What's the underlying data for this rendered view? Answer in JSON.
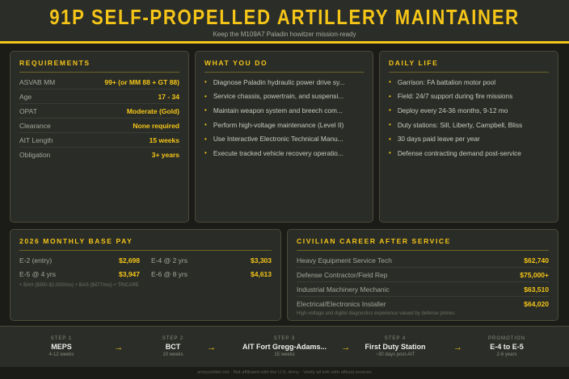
{
  "header": {
    "title": "91P SELF-PROPELLED ARTILLERY MAINTAINER",
    "subtitle": "Keep the M109A7 Paladin howitzer mission-ready"
  },
  "requirements": {
    "title": "REQUIREMENTS",
    "rows": [
      {
        "k": "ASVAB MM",
        "v": "99+ (or MM 88 + GT 88)"
      },
      {
        "k": "Age",
        "v": "17 - 34"
      },
      {
        "k": "OPAT",
        "v": "Moderate (Gold)"
      },
      {
        "k": "Clearance",
        "v": "None required"
      },
      {
        "k": "AIT Length",
        "v": "15 weeks"
      },
      {
        "k": "Obligation",
        "v": "3+ years"
      }
    ]
  },
  "what_you_do": {
    "title": "WHAT YOU DO",
    "items": [
      "Diagnose Paladin hydraulic power drive sy...",
      "Service chassis, powertrain, and suspensi...",
      "Maintain weapon system and breech com...",
      "Perform high-voltage maintenance (Level II)",
      "Use Interactive Electronic Technical Manu...",
      "Execute tracked vehicle recovery operatio..."
    ]
  },
  "daily_life": {
    "title": "DAILY LIFE",
    "items": [
      "Garrison: FA battalion motor pool",
      "Field: 24/7 support during fire missions",
      "Deploy every 24-36 months, 9-12 mo",
      "Duty stations: Sill, Liberty, Campbell, Bliss",
      "30 days paid leave per year",
      "Defense contracting demand post-service"
    ]
  },
  "pay": {
    "title": "2026 MONTHLY BASE PAY",
    "rows": [
      {
        "k": "E-2 (entry)",
        "v": "$2,698"
      },
      {
        "k": "E-4 @ 2 yrs",
        "v": "$3,303"
      },
      {
        "k": "E-5 @ 4 yrs",
        "v": "$3,947"
      },
      {
        "k": "E-6 @ 8 yrs",
        "v": "$4,613"
      }
    ],
    "note": "+ BAH ($900-$2,000/mo) + BAS ($477/mo) + TRICARE"
  },
  "civilian": {
    "title": "CIVILIAN CAREER AFTER SERVICE",
    "rows": [
      {
        "k": "Heavy Equipment Service Tech",
        "v": "$62,740"
      },
      {
        "k": "Defense Contractor/Field Rep",
        "v": "$75,000+"
      },
      {
        "k": "Industrial Machinery Mechanic",
        "v": "$63,510"
      },
      {
        "k": "Electrical/Electronics Installer",
        "v": "$64,020"
      }
    ],
    "note": "High-voltage and digital diagnostics experience valued by defense primes"
  },
  "steps": [
    {
      "l": "STEP 1",
      "n": "MEPS",
      "d": "4-12 weeks"
    },
    {
      "l": "STEP 2",
      "n": "BCT",
      "d": "10 weeks"
    },
    {
      "l": "STEP 3",
      "n": "AIT Fort Gregg-Adams...",
      "d": "15 weeks"
    },
    {
      "l": "STEP 4",
      "n": "First Duty Station",
      "d": "~30 days post-AIT"
    },
    {
      "l": "PROMOTION",
      "n": "E-4 to E-5",
      "d": "2-6 years"
    }
  ],
  "arrow": "→",
  "footer": "armysoldier.net · Not affiliated with the U.S. Army · Verify all info with official sources"
}
